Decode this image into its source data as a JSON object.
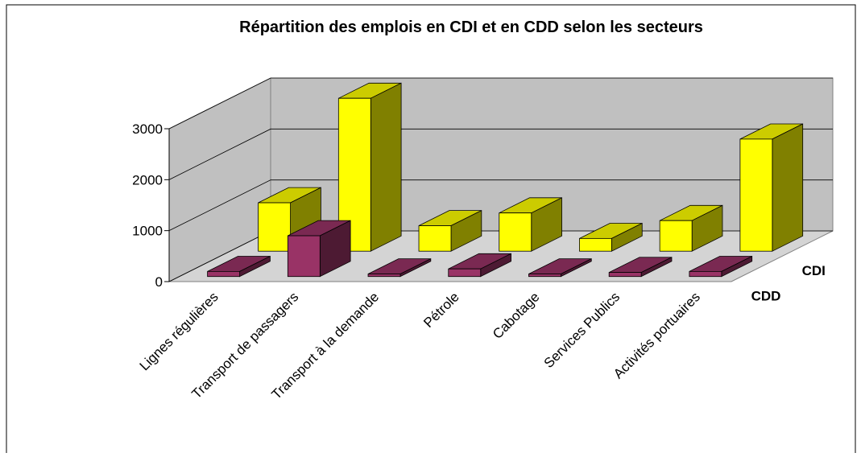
{
  "chart_data": {
    "type": "bar",
    "title": "Répartition des emplois en CDI et en CDD selon les secteurs",
    "categories": [
      "Lignes régulières",
      "Transport de passagers",
      "Transport à la demande",
      "Pétrole",
      "Cabotage",
      "Services Publics",
      "Activités portuaires"
    ],
    "series": [
      {
        "name": "CDD",
        "color": "#993366",
        "values": [
          100,
          800,
          50,
          150,
          50,
          80,
          100
        ]
      },
      {
        "name": "CDI",
        "color": "#ffff00",
        "values": [
          950,
          3000,
          500,
          750,
          250,
          600,
          2200
        ]
      }
    ],
    "ylim": [
      0,
      3000
    ],
    "yticks": [
      0,
      1000,
      2000,
      3000
    ],
    "grid": true
  }
}
